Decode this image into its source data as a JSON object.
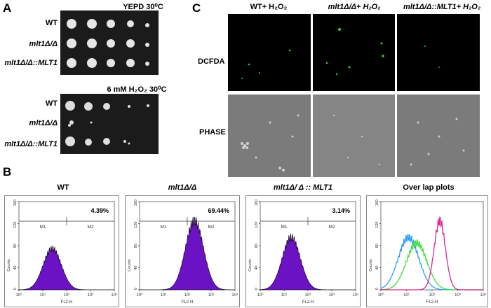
{
  "panels": {
    "a": "A",
    "b": "B",
    "c": "C"
  },
  "panel_a": {
    "plate1_title": "YEPD 30⁰C",
    "plate2_title": "6 mM  H₂O₂ 30⁰C",
    "rows": [
      "WT",
      "mlt1Δ/Δ",
      "mlt1Δ/Δ::MLT1"
    ]
  },
  "panel_c": {
    "columns": [
      "WT+ H₂O₂",
      "mlt1Δ/Δ+ H₂O₂",
      "mlt1Δ/Δ::MLT1+ H₂O₂"
    ],
    "rows": [
      "DCFDA",
      "PHASE"
    ]
  },
  "panel_b": {
    "plots": [
      {
        "title": "WT",
        "percent": "4.39%"
      },
      {
        "title": "mlt1Δ/Δ",
        "percent": "69.44%"
      },
      {
        "title": "mlt1Δ/ Δ :: MLT1",
        "percent": "3.14%"
      },
      {
        "title": "Over lap plots",
        "percent": ""
      }
    ],
    "xlabel": "FL2-H",
    "ylabel": "Counts",
    "gate_left": "M1",
    "gate_right": "M2",
    "y_ticks": [
      "0",
      "40",
      "80",
      "120",
      "160"
    ],
    "x_ticks": [
      "10⁰",
      "10¹",
      "10²",
      "10³",
      "10⁴"
    ],
    "overlay_colors": {
      "wt": "#2a9df4",
      "mutant": "#e0239a",
      "complemented": "#3fdc3f"
    },
    "fill_color": "#6a12c4"
  },
  "chart_data": [
    {
      "type": "area",
      "title": "WT",
      "xlabel": "FL2-H",
      "ylabel": "Counts",
      "x_scale": "log",
      "xlim": [
        1,
        10000
      ],
      "ylim": [
        0,
        160
      ],
      "annotation": "4.39%",
      "peak": {
        "x": 25,
        "y": 75
      }
    },
    {
      "type": "area",
      "title": "mlt1Δ/Δ",
      "xlabel": "FL2-H",
      "ylabel": "Counts",
      "x_scale": "log",
      "xlim": [
        1,
        10000
      ],
      "ylim": [
        0,
        160
      ],
      "annotation": "69.44%",
      "peak": {
        "x": 200,
        "y": 125
      }
    },
    {
      "type": "area",
      "title": "mlt1Δ/ Δ :: MLT1",
      "xlabel": "FL2-H",
      "ylabel": "Counts",
      "x_scale": "log",
      "xlim": [
        1,
        10000
      ],
      "ylim": [
        0,
        160
      ],
      "annotation": "3.14%",
      "peak": {
        "x": 20,
        "y": 95
      }
    },
    {
      "type": "line",
      "title": "Over lap plots",
      "xlabel": "FL2-H",
      "ylabel": "Counts",
      "x_scale": "log",
      "xlim": [
        1,
        10000
      ],
      "ylim": [
        0,
        160
      ],
      "series": [
        {
          "color": "#2a9df4",
          "peak": {
            "x": 12,
            "y": 95
          }
        },
        {
          "color": "#3fdc3f",
          "peak": {
            "x": 25,
            "y": 85
          }
        },
        {
          "color": "#e0239a",
          "peak": {
            "x": 200,
            "y": 125
          }
        }
      ]
    }
  ]
}
